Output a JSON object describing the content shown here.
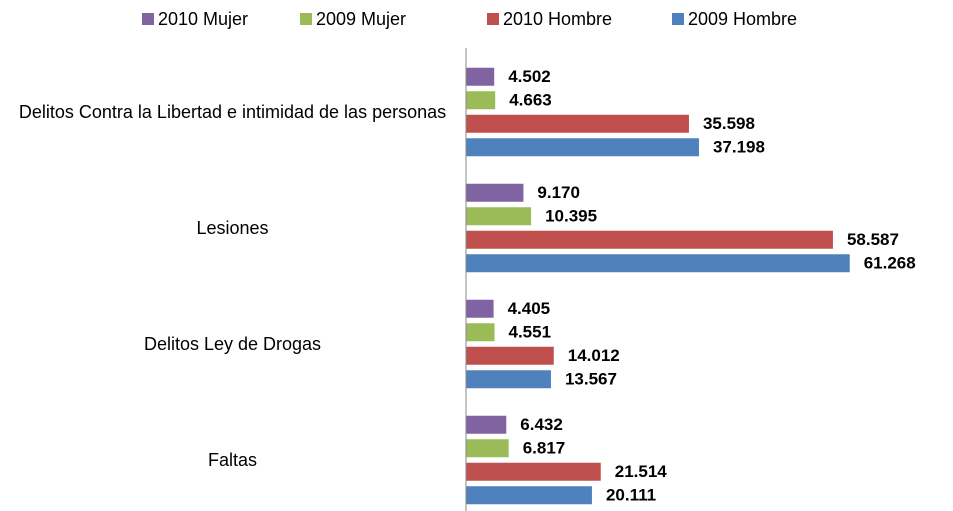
{
  "chart_data": {
    "type": "bar",
    "orientation": "horizontal",
    "categories": [
      "Delitos Contra la Libertad e intimidad de las personas",
      "Lesiones",
      "Delitos Ley de Drogas",
      "Faltas"
    ],
    "series": [
      {
        "name": "2010 Mujer",
        "color": "#8064a2",
        "values": [
          4502,
          9170,
          4405,
          6432
        ],
        "value_labels": [
          "4.502",
          "9.170",
          "4.405",
          "6.432"
        ]
      },
      {
        "name": "2009 Mujer",
        "color": "#9bbb59",
        "values": [
          4663,
          10395,
          4551,
          6817
        ],
        "value_labels": [
          "4.663",
          "10.395",
          "4.551",
          "6.817"
        ]
      },
      {
        "name": "2010 Hombre",
        "color": "#c0504d",
        "values": [
          35598,
          58587,
          14012,
          21514
        ],
        "value_labels": [
          "35.598",
          "58.587",
          "14.012",
          "21.514"
        ]
      },
      {
        "name": "2009 Hombre",
        "color": "#4f81bd",
        "values": [
          37198,
          61268,
          13567,
          20111
        ],
        "value_labels": [
          "37.198",
          "61.268",
          "13.567",
          "20.111"
        ]
      }
    ],
    "xlim": [
      0,
      76000
    ]
  }
}
